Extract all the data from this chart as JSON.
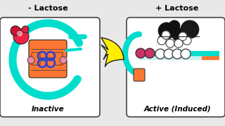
{
  "bg_color": "#e8e8e8",
  "title_minus": "- Lactose",
  "title_plus": "+ Lactose",
  "label_inactive": "Inactive",
  "label_active": "Active (Induced)",
  "teal": "#00ddcc",
  "orange": "#ff7733",
  "red": "#ee2244",
  "pink": "#dd4477",
  "blue": "#3344cc",
  "dark": "#111111",
  "white": "#ffffff",
  "yellow": "#ffee00",
  "title_fontsize": 8,
  "label_fontsize": 7.5
}
